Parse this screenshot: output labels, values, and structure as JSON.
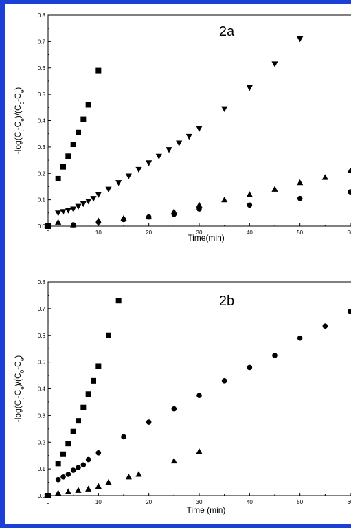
{
  "chart_data": [
    {
      "type": "scatter",
      "title": "2a",
      "xlabel": "Time(min)",
      "ylabel": "-log(Cₜ-Cₑ)/(C₀-Cₑ)",
      "xlim": [
        0,
        60
      ],
      "ylim": [
        0,
        0.8
      ],
      "xticks": [
        0,
        10,
        20,
        30,
        40,
        50,
        60
      ],
      "yticks": [
        0.0,
        0.1,
        0.2,
        0.3,
        0.4,
        0.5,
        0.6,
        0.7,
        0.8
      ],
      "grid": false,
      "legend": "none",
      "series": [
        {
          "marker": "square",
          "x": [
            0,
            2,
            3,
            4,
            5,
            6,
            7,
            8,
            10
          ],
          "y": [
            0.0,
            0.18,
            0.225,
            0.265,
            0.31,
            0.355,
            0.405,
            0.46,
            0.59
          ]
        },
        {
          "marker": "triangle-down",
          "x": [
            2,
            3,
            4,
            5,
            6,
            7,
            8,
            9,
            10,
            12,
            14,
            16,
            18,
            20,
            22,
            24,
            26,
            28,
            30,
            35,
            40,
            45,
            50
          ],
          "y": [
            0.05,
            0.055,
            0.06,
            0.065,
            0.075,
            0.085,
            0.095,
            0.105,
            0.12,
            0.14,
            0.165,
            0.19,
            0.215,
            0.24,
            0.265,
            0.29,
            0.315,
            0.34,
            0.37,
            0.445,
            0.525,
            0.615,
            0.71
          ]
        },
        {
          "marker": "triangle-up",
          "x": [
            2,
            5,
            10,
            15,
            20,
            25,
            30,
            35,
            40,
            45,
            50,
            55,
            60
          ],
          "y": [
            0.015,
            0.005,
            0.02,
            0.03,
            0.035,
            0.055,
            0.08,
            0.1,
            0.12,
            0.14,
            0.165,
            0.185,
            0.21
          ]
        },
        {
          "marker": "circle",
          "x": [
            0,
            5,
            10,
            15,
            20,
            25,
            30,
            40,
            50,
            60
          ],
          "y": [
            0.0,
            0.005,
            0.015,
            0.025,
            0.035,
            0.045,
            0.065,
            0.08,
            0.105,
            0.13
          ]
        }
      ]
    },
    {
      "type": "scatter",
      "title": "2b",
      "xlabel": "Time (min)",
      "ylabel": "-log(Cₜ-Cₑ)/(C₀-Cₑ)",
      "xlim": [
        0,
        60
      ],
      "ylim": [
        0,
        0.8
      ],
      "xticks": [
        0,
        10,
        20,
        30,
        40,
        50,
        60
      ],
      "yticks": [
        0.0,
        0.1,
        0.2,
        0.3,
        0.4,
        0.5,
        0.6,
        0.7,
        0.8
      ],
      "grid": false,
      "legend": "none",
      "series": [
        {
          "marker": "square",
          "x": [
            0,
            2,
            3,
            4,
            5,
            6,
            7,
            8,
            9,
            10,
            12,
            14
          ],
          "y": [
            0.0,
            0.12,
            0.155,
            0.195,
            0.24,
            0.28,
            0.33,
            0.38,
            0.43,
            0.485,
            0.6,
            0.73
          ]
        },
        {
          "marker": "circle",
          "x": [
            2,
            3,
            4,
            5,
            6,
            7,
            8,
            10,
            15,
            20,
            25,
            30,
            35,
            40,
            45,
            50,
            55,
            60
          ],
          "y": [
            0.06,
            0.07,
            0.08,
            0.095,
            0.105,
            0.115,
            0.135,
            0.16,
            0.22,
            0.275,
            0.325,
            0.375,
            0.43,
            0.48,
            0.525,
            0.59,
            0.635,
            0.69
          ]
        },
        {
          "marker": "triangle-up",
          "x": [
            2,
            4,
            6,
            8,
            10,
            12,
            16,
            18,
            25,
            30
          ],
          "y": [
            0.01,
            0.015,
            0.02,
            0.025,
            0.035,
            0.05,
            0.07,
            0.08,
            0.13,
            0.165
          ]
        }
      ]
    }
  ]
}
